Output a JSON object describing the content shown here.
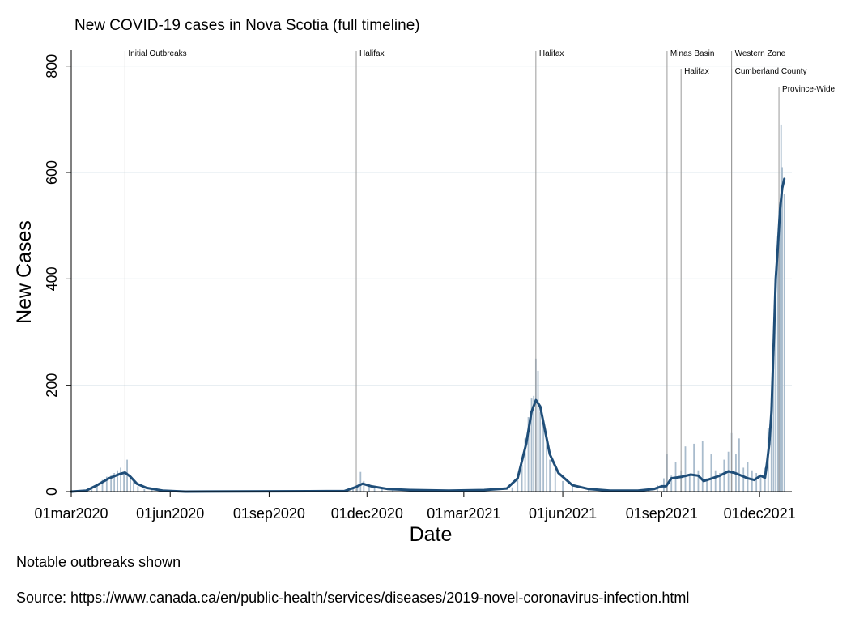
{
  "chart_data": {
    "type": "bar",
    "title": "New COVID-19 cases in Nova Scotia (full timeline)",
    "xlabel": "Date",
    "ylabel": "New Cases",
    "x_range": [
      "2020-03-01",
      "2021-12-31"
    ],
    "ylim": [
      0,
      830
    ],
    "y_ticks": [
      0,
      200,
      400,
      600,
      800
    ],
    "x_ticks": [
      {
        "date": "2020-03-01",
        "label": "01mar2020"
      },
      {
        "date": "2020-06-01",
        "label": "01jun2020"
      },
      {
        "date": "2020-09-01",
        "label": "01sep2020"
      },
      {
        "date": "2020-12-01",
        "label": "01dec2020"
      },
      {
        "date": "2021-03-01",
        "label": "01mar2021"
      },
      {
        "date": "2021-06-01",
        "label": "01jun2021"
      },
      {
        "date": "2021-09-01",
        "label": "01sep2021"
      },
      {
        "date": "2021-12-01",
        "label": "01dec2021"
      }
    ],
    "grid": true,
    "series": [
      {
        "name": "",
        "kind": "bar",
        "color": "#a9bccd",
        "points": [
          [
            "2020-03-15",
            2
          ],
          [
            "2020-03-20",
            8
          ],
          [
            "2020-03-25",
            15
          ],
          [
            "2020-03-30",
            22
          ],
          [
            "2020-04-03",
            28
          ],
          [
            "2020-04-07",
            30
          ],
          [
            "2020-04-10",
            35
          ],
          [
            "2020-04-13",
            40
          ],
          [
            "2020-04-16",
            45
          ],
          [
            "2020-04-19",
            35
          ],
          [
            "2020-04-22",
            60
          ],
          [
            "2020-04-25",
            30
          ],
          [
            "2020-04-28",
            20
          ],
          [
            "2020-05-02",
            10
          ],
          [
            "2020-05-08",
            5
          ],
          [
            "2020-05-15",
            3
          ],
          [
            "2020-05-25",
            1
          ],
          [
            "2020-11-18",
            5
          ],
          [
            "2020-11-22",
            10
          ],
          [
            "2020-11-25",
            37
          ],
          [
            "2020-11-28",
            20
          ],
          [
            "2020-12-03",
            14
          ],
          [
            "2020-12-08",
            8
          ],
          [
            "2020-12-15",
            5
          ],
          [
            "2020-12-25",
            3
          ],
          [
            "2021-01-10",
            2
          ],
          [
            "2021-02-20",
            3
          ],
          [
            "2021-04-15",
            8
          ],
          [
            "2021-04-20",
            25
          ],
          [
            "2021-04-24",
            50
          ],
          [
            "2021-04-27",
            100
          ],
          [
            "2021-04-30",
            140
          ],
          [
            "2021-05-03",
            175
          ],
          [
            "2021-05-05",
            180
          ],
          [
            "2021-05-07",
            250
          ],
          [
            "2021-05-09",
            227
          ],
          [
            "2021-05-11",
            150
          ],
          [
            "2021-05-14",
            130
          ],
          [
            "2021-05-17",
            100
          ],
          [
            "2021-05-20",
            60
          ],
          [
            "2021-05-25",
            40
          ],
          [
            "2021-06-01",
            20
          ],
          [
            "2021-06-10",
            10
          ],
          [
            "2021-06-25",
            3
          ],
          [
            "2021-07-20",
            2
          ],
          [
            "2021-08-20",
            5
          ],
          [
            "2021-08-28",
            12
          ],
          [
            "2021-09-03",
            25
          ],
          [
            "2021-09-06",
            70
          ],
          [
            "2021-09-10",
            30
          ],
          [
            "2021-09-14",
            55
          ],
          [
            "2021-09-19",
            40
          ],
          [
            "2021-09-23",
            85
          ],
          [
            "2021-09-27",
            30
          ],
          [
            "2021-10-01",
            90
          ],
          [
            "2021-10-05",
            40
          ],
          [
            "2021-10-09",
            95
          ],
          [
            "2021-10-13",
            25
          ],
          [
            "2021-10-17",
            70
          ],
          [
            "2021-10-21",
            40
          ],
          [
            "2021-10-25",
            35
          ],
          [
            "2021-10-29",
            60
          ],
          [
            "2021-11-02",
            75
          ],
          [
            "2021-11-05",
            110
          ],
          [
            "2021-11-09",
            70
          ],
          [
            "2021-11-12",
            100
          ],
          [
            "2021-11-16",
            45
          ],
          [
            "2021-11-20",
            55
          ],
          [
            "2021-11-24",
            40
          ],
          [
            "2021-11-28",
            35
          ],
          [
            "2021-12-02",
            30
          ],
          [
            "2021-12-06",
            45
          ],
          [
            "2021-12-09",
            120
          ],
          [
            "2021-12-12",
            130
          ],
          [
            "2021-12-14",
            290
          ],
          [
            "2021-12-16",
            410
          ],
          [
            "2021-12-18",
            480
          ],
          [
            "2021-12-20",
            520
          ],
          [
            "2021-12-21",
            690
          ],
          [
            "2021-12-22",
            610
          ],
          [
            "2021-12-24",
            560
          ]
        ]
      },
      {
        "name": "",
        "kind": "line",
        "color": "#1f4e79",
        "points": [
          [
            "2020-03-01",
            0
          ],
          [
            "2020-03-15",
            2
          ],
          [
            "2020-03-25",
            12
          ],
          [
            "2020-04-05",
            25
          ],
          [
            "2020-04-15",
            33
          ],
          [
            "2020-04-20",
            36
          ],
          [
            "2020-04-25",
            28
          ],
          [
            "2020-05-01",
            15
          ],
          [
            "2020-05-10",
            7
          ],
          [
            "2020-05-25",
            2
          ],
          [
            "2020-06-15",
            0
          ],
          [
            "2020-11-10",
            1
          ],
          [
            "2020-11-20",
            8
          ],
          [
            "2020-11-27",
            15
          ],
          [
            "2020-12-05",
            10
          ],
          [
            "2020-12-20",
            5
          ],
          [
            "2021-01-10",
            3
          ],
          [
            "2021-02-15",
            2
          ],
          [
            "2021-03-20",
            3
          ],
          [
            "2021-04-10",
            6
          ],
          [
            "2021-04-20",
            25
          ],
          [
            "2021-04-28",
            90
          ],
          [
            "2021-05-03",
            150
          ],
          [
            "2021-05-07",
            172
          ],
          [
            "2021-05-11",
            160
          ],
          [
            "2021-05-15",
            120
          ],
          [
            "2021-05-20",
            70
          ],
          [
            "2021-05-28",
            35
          ],
          [
            "2021-06-10",
            12
          ],
          [
            "2021-06-25",
            5
          ],
          [
            "2021-07-15",
            2
          ],
          [
            "2021-08-10",
            2
          ],
          [
            "2021-08-25",
            5
          ],
          [
            "2021-09-01",
            10
          ],
          [
            "2021-09-05",
            10
          ],
          [
            "2021-09-10",
            25
          ],
          [
            "2021-09-20",
            28
          ],
          [
            "2021-09-28",
            32
          ],
          [
            "2021-10-05",
            30
          ],
          [
            "2021-10-10",
            20
          ],
          [
            "2021-10-18",
            25
          ],
          [
            "2021-10-25",
            30
          ],
          [
            "2021-11-02",
            38
          ],
          [
            "2021-11-08",
            35
          ],
          [
            "2021-11-14",
            30
          ],
          [
            "2021-11-20",
            25
          ],
          [
            "2021-11-26",
            22
          ],
          [
            "2021-12-02",
            30
          ],
          [
            "2021-12-06",
            26
          ],
          [
            "2021-12-08",
            55
          ],
          [
            "2021-12-10",
            90
          ],
          [
            "2021-12-12",
            150
          ],
          [
            "2021-12-14",
            270
          ],
          [
            "2021-12-16",
            400
          ],
          [
            "2021-12-18",
            460
          ],
          [
            "2021-12-20",
            530
          ],
          [
            "2021-12-22",
            570
          ],
          [
            "2021-12-24",
            588
          ]
        ]
      }
    ],
    "annotations": [
      {
        "date": "2020-04-20",
        "label": "Initial Outbreaks",
        "row": 0
      },
      {
        "date": "2020-11-21",
        "label": "Halifax",
        "row": 0
      },
      {
        "date": "2021-05-07",
        "label": "Halifax",
        "row": 0
      },
      {
        "date": "2021-09-06",
        "label": "Minas Basin",
        "row": 0
      },
      {
        "date": "2021-09-19",
        "label": "Halifax",
        "row": 1
      },
      {
        "date": "2021-11-05",
        "label": "Western Zone",
        "row": 0
      },
      {
        "date": "2021-11-05",
        "label": "Cumberland County",
        "row": 1
      },
      {
        "date": "2021-12-19",
        "label": "Province-Wide",
        "row": 2
      }
    ],
    "notes": [
      "Notable outbreaks shown",
      "Source: https://www.canada.ca/en/public-health/services/diseases/2019-novel-coronavirus-infection.html"
    ]
  }
}
